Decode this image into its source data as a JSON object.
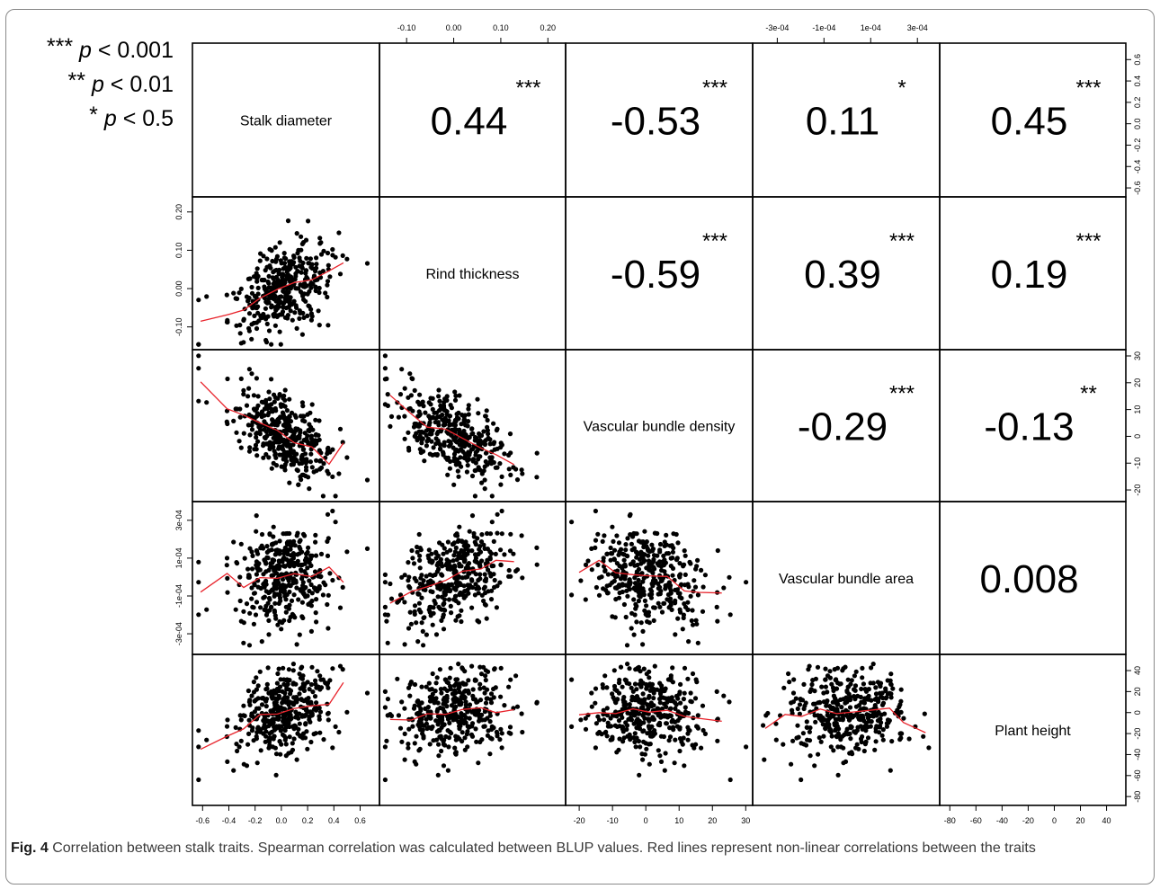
{
  "legend": [
    {
      "stars": "***",
      "var": "p",
      "rest": " < 0.001"
    },
    {
      "stars": "**",
      "var": "p",
      "rest": " < 0.01"
    },
    {
      "stars": "*",
      "var": "p",
      "rest": " < 0.5"
    }
  ],
  "caption": {
    "lead": "Fig. 4",
    "text": " Correlation between stalk traits. Spearman correlation was calculated between BLUP values. Red lines represent non-linear correlations between the traits"
  },
  "chart_data": {
    "type": "scatter",
    "traits": [
      "Stalk diameter",
      "Rind thickness",
      "Vascular bundle density",
      "Vascular bundle area",
      "Plant height"
    ],
    "ranges": [
      [
        -0.65,
        0.72
      ],
      [
        -0.15,
        0.23
      ],
      [
        -23,
        31
      ],
      [
        -0.00039,
        0.00038
      ],
      [
        -85,
        52
      ]
    ],
    "axis_ticks": [
      [
        "-0.6",
        "-0.4",
        "-0.2",
        "0.0",
        "0.2",
        "0.4",
        "0.6"
      ],
      [
        "-0.10",
        "0.00",
        "0.10",
        "0.20"
      ],
      [
        "-20",
        "-10",
        "0",
        "10",
        "20",
        "30"
      ],
      [
        "-3e-04",
        "-1e-04",
        "1e-04",
        "3e-04"
      ],
      [
        "-80",
        "-60",
        "-40",
        "-20",
        "0",
        "20",
        "40"
      ]
    ],
    "correlations": [
      {
        "row": 0,
        "col": 1,
        "r": "0.44",
        "sig": "***"
      },
      {
        "row": 0,
        "col": 2,
        "r": "-0.53",
        "sig": "***"
      },
      {
        "row": 0,
        "col": 3,
        "r": "0.11",
        "sig": "*"
      },
      {
        "row": 0,
        "col": 4,
        "r": "0.45",
        "sig": "***"
      },
      {
        "row": 1,
        "col": 2,
        "r": "-0.59",
        "sig": "***"
      },
      {
        "row": 1,
        "col": 3,
        "r": "0.39",
        "sig": "***"
      },
      {
        "row": 1,
        "col": 4,
        "r": "0.19",
        "sig": "***"
      },
      {
        "row": 2,
        "col": 3,
        "r": "-0.29",
        "sig": "***"
      },
      {
        "row": 2,
        "col": 4,
        "r": "-0.13",
        "sig": "**"
      },
      {
        "row": 3,
        "col": 4,
        "r": "0.008",
        "sig": ""
      }
    ],
    "point_color": "#000000",
    "fit_color": "#e8222a"
  }
}
